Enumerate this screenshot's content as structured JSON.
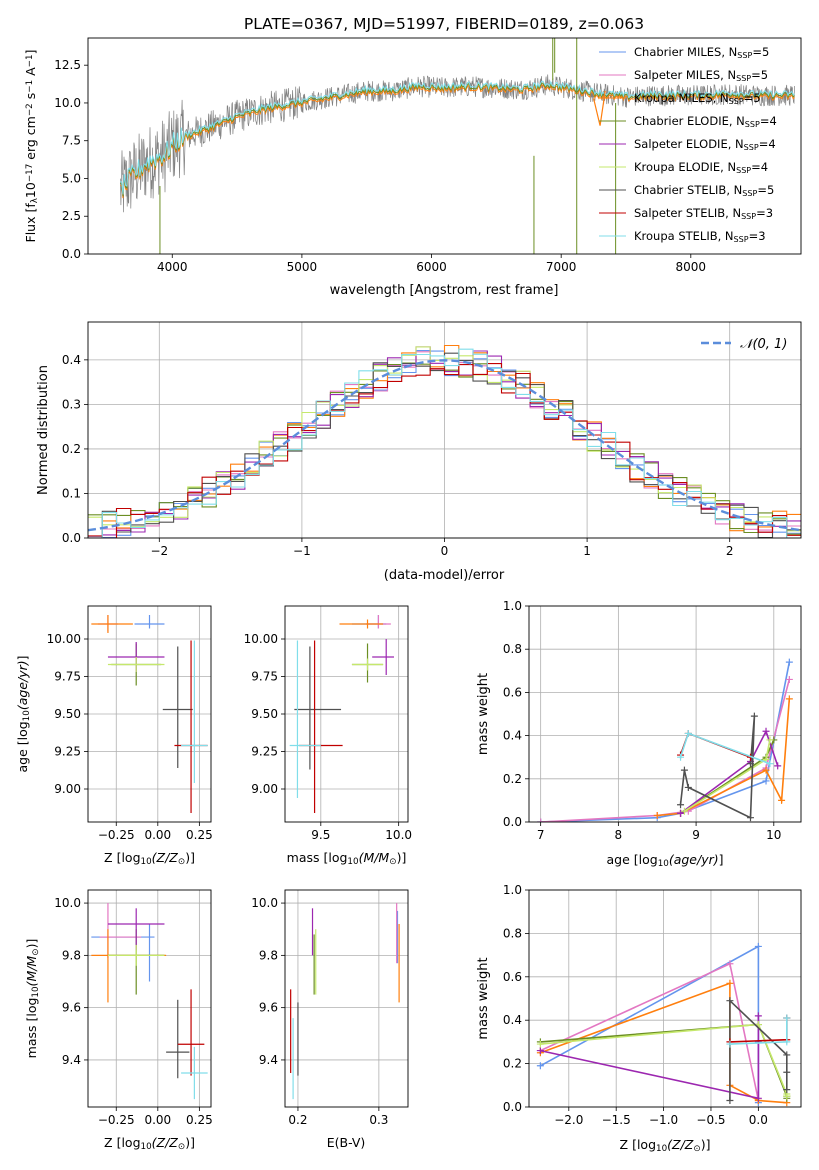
{
  "figure": {
    "title": "PLATE=0367, MJD=51997, FIBERID=0189, z=0.063"
  },
  "colors": {
    "Chabrier MILES": "#6495ed",
    "Salpeter MILES": "#e377c2",
    "Kroupa MILES": "#ff7f0e",
    "Chabrier ELODIE": "#6b8e23",
    "Salpeter ELODIE": "#9c27b0",
    "Kroupa ELODIE": "#c5e86c",
    "Chabrier STELIB": "#505050",
    "Salpeter STELIB": "#c00000",
    "Kroupa STELIB": "#80deea",
    "data": "#808080",
    "gaussian": "#5b8ddb"
  },
  "chart_data": [
    {
      "id": "spectrum",
      "type": "line",
      "xlabel": "wavelength [Angstrom, rest frame]",
      "ylabel": "Flux [f",
      "xlim": [
        3350,
        8850
      ],
      "ylim": [
        0,
        14.3
      ],
      "xticks": [
        4000,
        5000,
        6000,
        7000,
        8000
      ],
      "yticks": [
        0.0,
        2.5,
        5.0,
        7.5,
        10.0,
        12.5
      ],
      "legend": [
        {
          "label": "Chabrier MILES, N",
          "nssp": "5",
          "color_key": "Chabrier MILES"
        },
        {
          "label": "Salpeter MILES, N",
          "nssp": "5",
          "color_key": "Salpeter MILES"
        },
        {
          "label": "Kroupa MILES, N",
          "nssp": "5",
          "color_key": "Kroupa MILES"
        },
        {
          "label": "Chabrier ELODIE, N",
          "nssp": "4",
          "color_key": "Chabrier ELODIE"
        },
        {
          "label": "Salpeter ELODIE, N",
          "nssp": "4",
          "color_key": "Salpeter ELODIE"
        },
        {
          "label": "Kroupa ELODIE, N",
          "nssp": "4",
          "color_key": "Kroupa ELODIE"
        },
        {
          "label": "Chabrier STELIB, N",
          "nssp": "5",
          "color_key": "Chabrier STELIB"
        },
        {
          "label": "Salpeter STELIB, N",
          "nssp": "3",
          "color_key": "Salpeter STELIB"
        },
        {
          "label": "Kroupa STELIB, N",
          "nssp": "3",
          "color_key": "Kroupa STELIB"
        }
      ],
      "legend_placement": "upper right",
      "continuum": [
        [
          3600,
          4.2
        ],
        [
          3700,
          5.2
        ],
        [
          3800,
          6.0
        ],
        [
          3950,
          6.6
        ],
        [
          4000,
          7.2
        ],
        [
          4100,
          7.8
        ],
        [
          4300,
          8.4
        ],
        [
          4500,
          9.1
        ],
        [
          4700,
          9.6
        ],
        [
          4900,
          9.9
        ],
        [
          5100,
          10.2
        ],
        [
          5300,
          10.5
        ],
        [
          5500,
          10.8
        ],
        [
          5700,
          10.8
        ],
        [
          5900,
          11.1
        ],
        [
          6100,
          11.0
        ],
        [
          6300,
          11.1
        ],
        [
          6500,
          11.0
        ],
        [
          6700,
          10.9
        ],
        [
          6900,
          11.2
        ],
        [
          7100,
          10.9
        ],
        [
          7300,
          10.6
        ],
        [
          7500,
          10.4
        ],
        [
          7700,
          10.5
        ],
        [
          7900,
          10.5
        ],
        [
          8100,
          10.5
        ],
        [
          8300,
          10.6
        ],
        [
          8500,
          10.5
        ],
        [
          8800,
          10.5
        ]
      ]
    },
    {
      "id": "residual-hist",
      "type": "step",
      "xlabel": "(data-model)/error",
      "ylabel": "Normed distribution",
      "xlim": [
        -2.5,
        2.5
      ],
      "ylim": [
        0,
        0.485
      ],
      "xticks": [
        -2,
        -1,
        0,
        1,
        2
      ],
      "yticks": [
        0.0,
        0.1,
        0.2,
        0.3,
        0.4
      ],
      "bin_width": 0.1,
      "gaussian_label": "𝒩(0, 1)",
      "legend_placement": "upper right"
    },
    {
      "id": "age-vs-Z",
      "type": "errorbar",
      "xlabel": "Z [log",
      "ylabel": "age  [log",
      "xlim": [
        -0.42,
        0.32
      ],
      "ylim": [
        8.78,
        10.22
      ],
      "xticks": [
        -0.25,
        0.0,
        0.25
      ],
      "yticks": [
        9.0,
        9.25,
        9.5,
        9.75,
        10.0
      ],
      "points": [
        {
          "key": "Chabrier MILES",
          "x": -0.05,
          "y": 10.1,
          "xerr": [
            0.09,
            0.09
          ],
          "yerr": [
            0.03,
            0.06
          ]
        },
        {
          "key": "Salpeter MILES",
          "x": -0.3,
          "y": 10.1,
          "xerr": [
            0.06,
            0.06
          ],
          "yerr": [
            0.05,
            0.06
          ]
        },
        {
          "key": "Kroupa MILES",
          "x": -0.3,
          "y": 10.1,
          "xerr": [
            0.1,
            0.15
          ],
          "yerr": [
            0.06,
            0.06
          ]
        },
        {
          "key": "Chabrier ELODIE",
          "x": -0.13,
          "y": 9.83,
          "xerr": [
            0.15,
            0.15
          ],
          "yerr": [
            0.14,
            0.14
          ]
        },
        {
          "key": "Salpeter ELODIE",
          "x": -0.13,
          "y": 9.88,
          "xerr": [
            0.17,
            0.17
          ],
          "yerr": [
            0.1,
            0.1
          ]
        },
        {
          "key": "Kroupa ELODIE",
          "x": -0.13,
          "y": 9.83,
          "xerr": [
            0.17,
            0.17
          ],
          "yerr": [
            0.05,
            0.05
          ]
        },
        {
          "key": "Chabrier STELIB",
          "x": 0.12,
          "y": 9.53,
          "xerr": [
            0.09,
            0.09
          ],
          "yerr": [
            0.39,
            0.42
          ]
        },
        {
          "key": "Salpeter STELIB",
          "x": 0.2,
          "y": 9.29,
          "xerr": [
            0.1,
            0.1
          ],
          "yerr": [
            0.45,
            0.7
          ]
        },
        {
          "key": "Kroupa STELIB",
          "x": 0.22,
          "y": 9.29,
          "xerr": [
            0.08,
            0.08
          ],
          "yerr": [
            0.25,
            0.7
          ]
        }
      ]
    },
    {
      "id": "age-vs-mass",
      "type": "errorbar",
      "xlabel": "mass [log",
      "ylabel": "",
      "xlim": [
        9.27,
        10.06
      ],
      "ylim": [
        8.78,
        10.22
      ],
      "xticks": [
        9.5,
        10.0
      ],
      "yticks": [
        9.0,
        9.25,
        9.5,
        9.75,
        10.0
      ],
      "points": [
        {
          "key": "Chabrier MILES",
          "x": 9.87,
          "y": 10.1,
          "xerr": [
            0.17,
            0.05
          ],
          "yerr": [
            0.03,
            0.06
          ]
        },
        {
          "key": "Salpeter MILES",
          "x": 9.87,
          "y": 10.1,
          "xerr": [
            0.08,
            0.08
          ],
          "yerr": [
            0.03,
            0.06
          ]
        },
        {
          "key": "Kroupa MILES",
          "x": 9.8,
          "y": 10.1,
          "xerr": [
            0.18,
            0.1
          ],
          "yerr": [
            0.03,
            0.03
          ]
        },
        {
          "key": "Chabrier ELODIE",
          "x": 9.8,
          "y": 9.83,
          "xerr": [
            0.1,
            0.1
          ],
          "yerr": [
            0.12,
            0.14
          ]
        },
        {
          "key": "Salpeter ELODIE",
          "x": 9.92,
          "y": 9.88,
          "xerr": [
            0.09,
            0.05
          ],
          "yerr": [
            0.12,
            0.12
          ]
        },
        {
          "key": "Kroupa ELODIE",
          "x": 9.8,
          "y": 9.83,
          "xerr": [
            0.1,
            0.1
          ],
          "yerr": [
            0.04,
            0.04
          ]
        },
        {
          "key": "Chabrier STELIB",
          "x": 9.43,
          "y": 9.53,
          "xerr": [
            0.1,
            0.2
          ],
          "yerr": [
            0.4,
            0.42
          ]
        },
        {
          "key": "Salpeter STELIB",
          "x": 9.46,
          "y": 9.29,
          "xerr": [
            0.1,
            0.18
          ],
          "yerr": [
            0.45,
            0.7
          ]
        },
        {
          "key": "Kroupa STELIB",
          "x": 9.35,
          "y": 9.29,
          "xerr": [
            0.05,
            0.15
          ],
          "yerr": [
            0.35,
            0.7
          ]
        }
      ]
    },
    {
      "id": "weight-vs-age",
      "type": "line",
      "xlabel": "age  [log",
      "ylabel": "mass weight",
      "xlim": [
        6.85,
        10.35
      ],
      "ylim": [
        0,
        1.0
      ],
      "xticks": [
        7,
        8,
        9,
        10
      ],
      "yticks": [
        0.0,
        0.2,
        0.4,
        0.6,
        0.8,
        1.0
      ],
      "series": [
        {
          "key": "Chabrier MILES",
          "x": [
            7.0,
            8.5,
            8.8,
            9.9,
            10.2
          ],
          "y": [
            0.0,
            0.02,
            0.04,
            0.19,
            0.74
          ]
        },
        {
          "key": "Salpeter MILES",
          "x": [
            7.0,
            8.5,
            8.9,
            9.9,
            10.2
          ],
          "y": [
            0.0,
            0.03,
            0.05,
            0.25,
            0.66
          ]
        },
        {
          "key": "Kroupa MILES",
          "x": [
            8.5,
            8.8,
            9.9,
            10.1,
            10.2
          ],
          "y": [
            0.03,
            0.04,
            0.24,
            0.1,
            0.57
          ]
        },
        {
          "key": "Chabrier ELODIE",
          "x": [
            8.8,
            9.9,
            10.0
          ],
          "y": [
            0.04,
            0.3,
            0.38
          ]
        },
        {
          "key": "Salpeter ELODIE",
          "x": [
            8.8,
            9.7,
            9.9,
            10.05
          ],
          "y": [
            0.04,
            0.28,
            0.42,
            0.26
          ]
        },
        {
          "key": "Kroupa ELODIE",
          "x": [
            8.85,
            9.9,
            9.95
          ],
          "y": [
            0.05,
            0.29,
            0.38
          ]
        },
        {
          "key": "Chabrier STELIB",
          "x": [
            8.8,
            8.85,
            8.9,
            9.7,
            9.75,
            9.7
          ],
          "y": [
            0.08,
            0.24,
            0.16,
            0.02,
            0.49,
            0.27
          ]
        },
        {
          "key": "Salpeter STELIB",
          "x": [
            8.8,
            8.9,
            9.7
          ],
          "y": [
            0.31,
            0.41,
            0.3
          ]
        },
        {
          "key": "Kroupa STELIB",
          "x": [
            8.8,
            8.9,
            9.95
          ],
          "y": [
            0.3,
            0.41,
            0.27
          ]
        }
      ]
    },
    {
      "id": "mass-vs-Z",
      "type": "errorbar",
      "xlabel": "Z [log",
      "ylabel": "mass [log",
      "xlim": [
        -0.42,
        0.32
      ],
      "ylim": [
        9.22,
        10.05
      ],
      "xticks": [
        -0.25,
        0.0,
        0.25
      ],
      "yticks": [
        9.4,
        9.6,
        9.8,
        10.0
      ],
      "points": [
        {
          "key": "Chabrier MILES",
          "x": -0.05,
          "y": 9.87,
          "xerr": [
            0.35,
            0.03
          ],
          "yerr": [
            0.17,
            0.05
          ]
        },
        {
          "key": "Salpeter MILES",
          "x": -0.3,
          "y": 9.87,
          "xerr": [
            0.05,
            0.2
          ],
          "yerr": [
            0.08,
            0.13
          ]
        },
        {
          "key": "Kroupa MILES",
          "x": -0.3,
          "y": 9.8,
          "xerr": [
            0.1,
            0.35
          ],
          "yerr": [
            0.18,
            0.1
          ]
        },
        {
          "key": "Chabrier ELODIE",
          "x": -0.13,
          "y": 9.8,
          "xerr": [
            0.17,
            0.17
          ],
          "yerr": [
            0.15,
            0.1
          ]
        },
        {
          "key": "Salpeter ELODIE",
          "x": -0.13,
          "y": 9.92,
          "xerr": [
            0.17,
            0.17
          ],
          "yerr": [
            0.1,
            0.06
          ]
        },
        {
          "key": "Kroupa ELODIE",
          "x": -0.13,
          "y": 9.8,
          "xerr": [
            0.17,
            0.17
          ],
          "yerr": [
            0.04,
            0.04
          ]
        },
        {
          "key": "Chabrier STELIB",
          "x": 0.12,
          "y": 9.43,
          "xerr": [
            0.07,
            0.07
          ],
          "yerr": [
            0.1,
            0.2
          ]
        },
        {
          "key": "Salpeter STELIB",
          "x": 0.2,
          "y": 9.46,
          "xerr": [
            0.08,
            0.08
          ],
          "yerr": [
            0.12,
            0.21
          ]
        },
        {
          "key": "Kroupa STELIB",
          "x": 0.22,
          "y": 9.35,
          "xerr": [
            0.08,
            0.08
          ],
          "yerr": [
            0.1,
            0.1
          ]
        }
      ]
    },
    {
      "id": "mass-vs-ebv",
      "type": "errorbar",
      "xlabel": "E(B-V)",
      "ylabel": "",
      "xlim": [
        0.184,
        0.336
      ],
      "ylim": [
        9.22,
        10.05
      ],
      "xticks": [
        0.2,
        0.3
      ],
      "yticks": [
        9.4,
        9.6,
        9.8,
        10.0
      ],
      "points": [
        {
          "key": "Chabrier MILES",
          "x": 0.323,
          "y": 9.87,
          "xerr": [
            0,
            0
          ],
          "yerr": [
            0.1,
            0.1
          ]
        },
        {
          "key": "Salpeter MILES",
          "x": 0.322,
          "y": 9.87,
          "xerr": [
            0,
            0
          ],
          "yerr": [
            0.1,
            0.13
          ]
        },
        {
          "key": "Kroupa MILES",
          "x": 0.325,
          "y": 9.8,
          "xerr": [
            0,
            0
          ],
          "yerr": [
            0.18,
            0.12
          ]
        },
        {
          "key": "Chabrier ELODIE",
          "x": 0.22,
          "y": 9.8,
          "xerr": [
            0,
            0
          ],
          "yerr": [
            0.15,
            0.08
          ]
        },
        {
          "key": "Salpeter ELODIE",
          "x": 0.218,
          "y": 9.9,
          "xerr": [
            0,
            0
          ],
          "yerr": [
            0.1,
            0.08
          ]
        },
        {
          "key": "Kroupa ELODIE",
          "x": 0.222,
          "y": 9.8,
          "xerr": [
            0,
            0
          ],
          "yerr": [
            0.15,
            0.1
          ]
        },
        {
          "key": "Chabrier STELIB",
          "x": 0.2,
          "y": 9.43,
          "xerr": [
            0,
            0
          ],
          "yerr": [
            0.09,
            0.19
          ]
        },
        {
          "key": "Salpeter STELIB",
          "x": 0.191,
          "y": 9.5,
          "xerr": [
            0,
            0
          ],
          "yerr": [
            0.15,
            0.17
          ]
        },
        {
          "key": "Kroupa STELIB",
          "x": 0.194,
          "y": 9.4,
          "xerr": [
            0,
            0
          ],
          "yerr": [
            0.15,
            0.16
          ]
        }
      ]
    },
    {
      "id": "weight-vs-Z",
      "type": "line",
      "xlabel": "Z [log",
      "ylabel": "mass weight",
      "xlim": [
        -2.42,
        0.45
      ],
      "ylim": [
        0,
        1.0
      ],
      "xticks": [
        -2.0,
        -1.5,
        -1.0,
        -0.5,
        0.0
      ],
      "yticks": [
        0.0,
        0.2,
        0.4,
        0.6,
        0.8,
        1.0
      ],
      "series": [
        {
          "key": "Chabrier MILES",
          "x": [
            -2.3,
            0.0,
            0.0,
            0.0
          ],
          "y": [
            0.19,
            0.74,
            0.3,
            0.02
          ]
        },
        {
          "key": "Salpeter MILES",
          "x": [
            -2.3,
            -0.3,
            0.0
          ],
          "y": [
            0.26,
            0.66,
            0.03
          ]
        },
        {
          "key": "Kroupa MILES",
          "x": [
            -2.3,
            -0.3,
            -0.3,
            0.0,
            0.3
          ],
          "y": [
            0.25,
            0.57,
            0.1,
            0.03,
            0.02
          ]
        },
        {
          "key": "Chabrier ELODIE",
          "x": [
            -2.3,
            0.0,
            0.3,
            0.3
          ],
          "y": [
            0.3,
            0.38,
            0.05,
            0.04
          ]
        },
        {
          "key": "Salpeter ELODIE",
          "x": [
            -2.3,
            0.0,
            0.0
          ],
          "y": [
            0.26,
            0.04,
            0.42
          ]
        },
        {
          "key": "Kroupa ELODIE",
          "x": [
            -2.3,
            0.0,
            0.3,
            0.3
          ],
          "y": [
            0.29,
            0.38,
            0.06,
            0.05
          ]
        },
        {
          "key": "Chabrier STELIB",
          "x": [
            -0.3,
            -0.3,
            0.3,
            0.3,
            0.3
          ],
          "y": [
            0.03,
            0.49,
            0.24,
            0.08,
            0.16
          ]
        },
        {
          "key": "Salpeter STELIB",
          "x": [
            -0.3,
            0.3,
            0.3
          ],
          "y": [
            0.3,
            0.31,
            0.41
          ]
        },
        {
          "key": "Kroupa STELIB",
          "x": [
            -0.3,
            0.3,
            0.3
          ],
          "y": [
            0.29,
            0.3,
            0.41
          ]
        }
      ]
    }
  ],
  "labels": {
    "flux_ylabel_tail": "10",
    "flux_exp": "−17",
    "flux_units": " erg cm",
    "z_sub": "10",
    "z_arg": "(Z/Z",
    "age_sub": "10",
    "age_arg": "(age/yr)",
    "mass_sub": "10",
    "mass_arg": "(M/M",
    "ssp_sub": "SSP"
  }
}
